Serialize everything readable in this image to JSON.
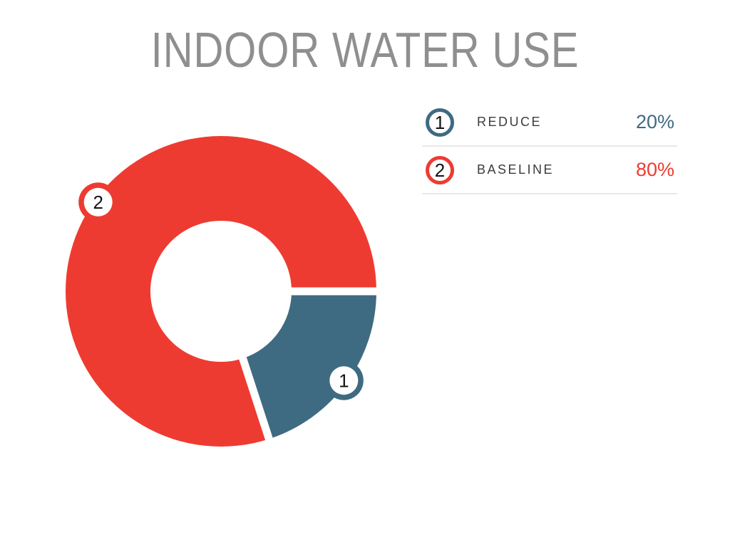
{
  "title": "INDOOR WATER USE",
  "chart_data": {
    "type": "pie",
    "subtype": "donut",
    "title": "INDOOR WATER USE",
    "unit": "%",
    "start_angle_deg": 0,
    "direction": "clockwise",
    "hole_ratio": 0.45,
    "legend_position": "right",
    "slices": [
      {
        "marker": "1",
        "label": "REDUCE",
        "value": 20,
        "display": "20%",
        "color": "#3e6b81"
      },
      {
        "marker": "2",
        "label": "BASELINE",
        "value": 80,
        "display": "80%",
        "color": "#ee3b31"
      }
    ]
  },
  "colors": {
    "title": "#8f8f8f",
    "legend_label": "#3c3c3c",
    "marker_number": "#141414",
    "divider": "#e8e8e8",
    "slice_gap": "#ffffff",
    "background": "#ffffff"
  }
}
